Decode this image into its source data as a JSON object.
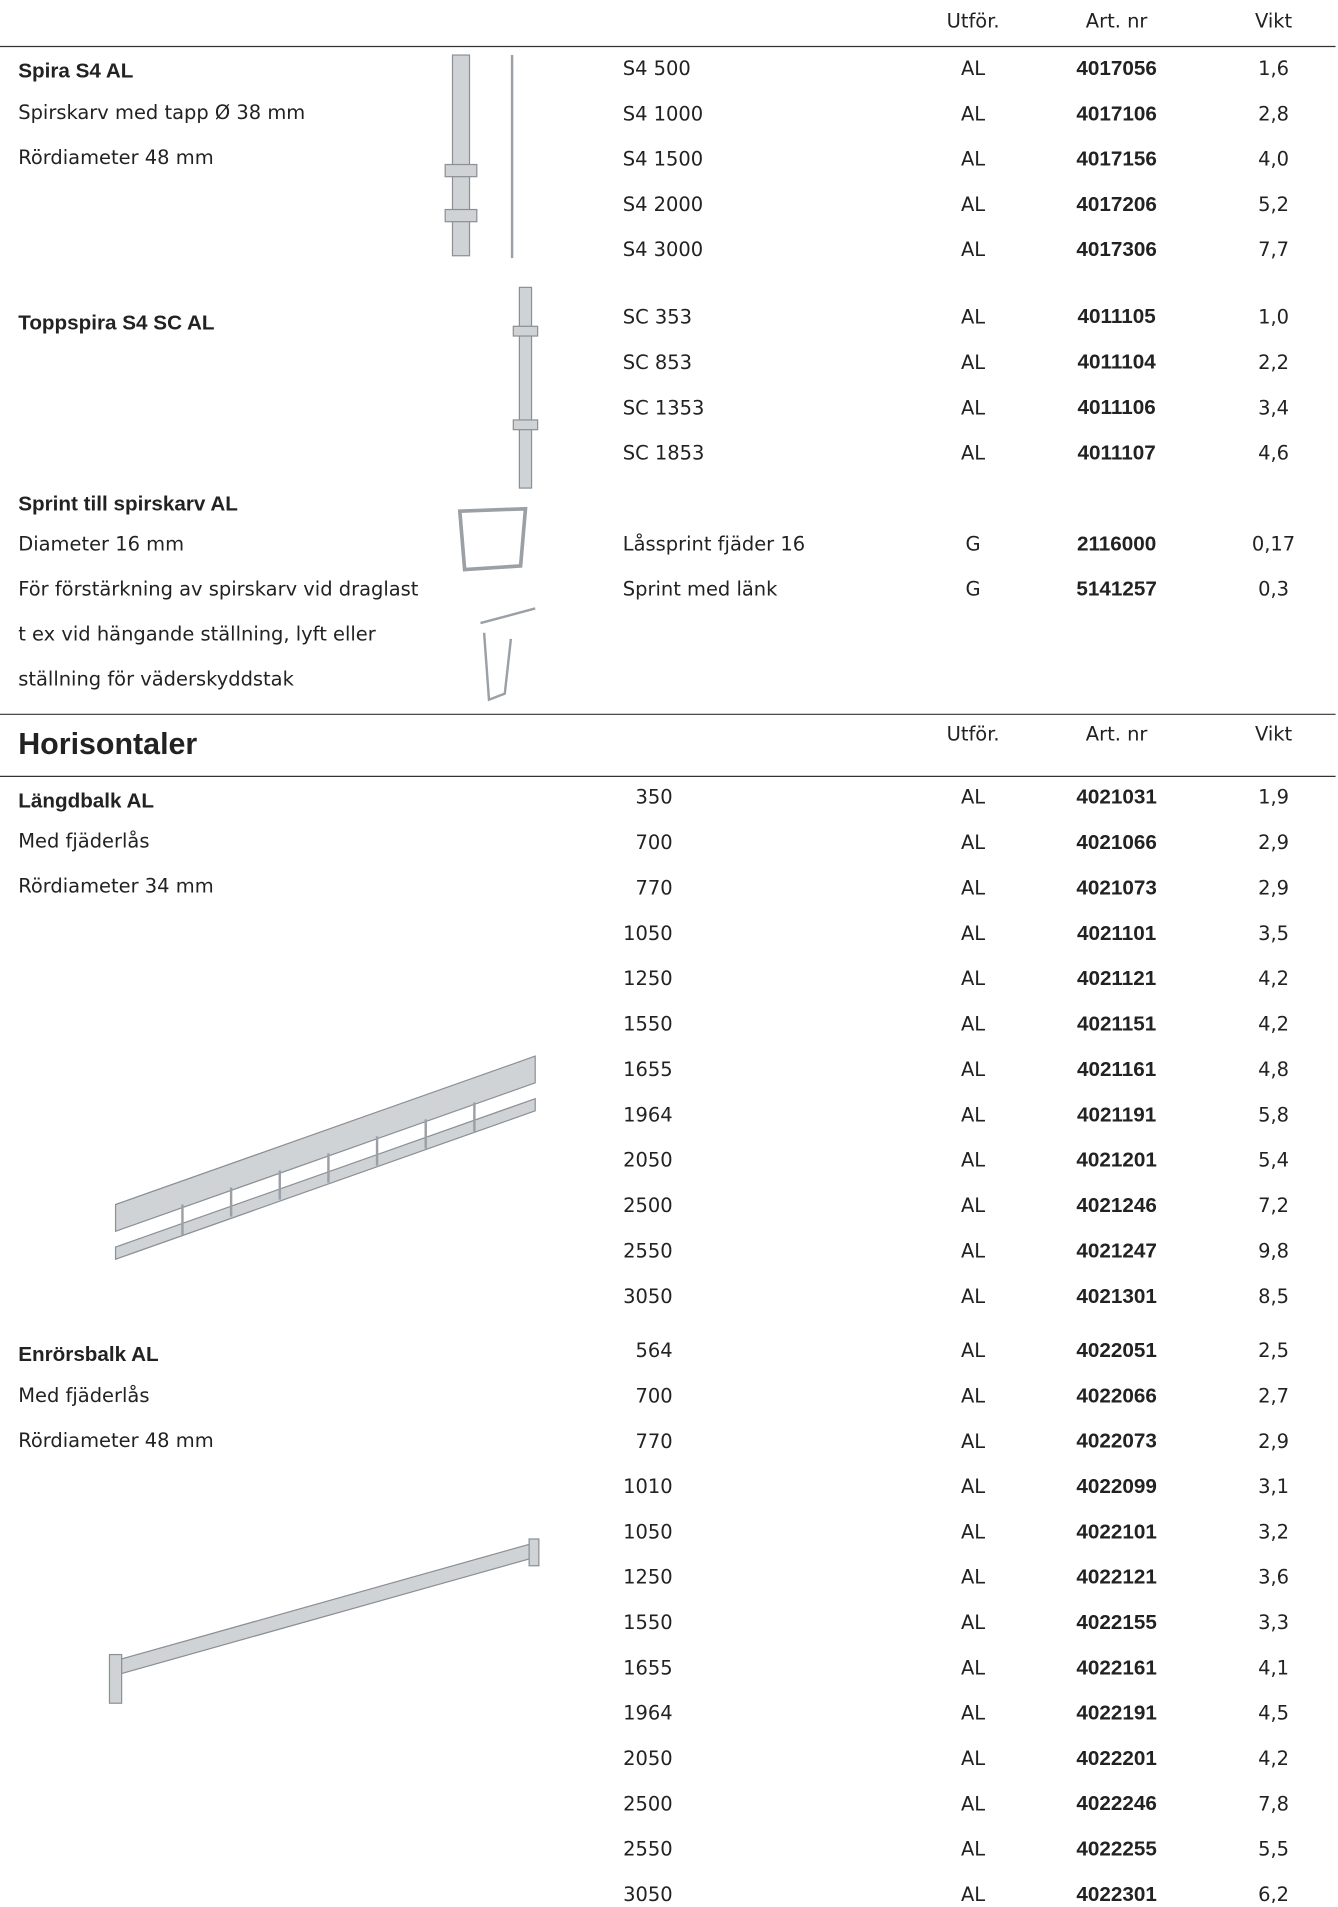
{
  "header": {
    "utfor": "Utför.",
    "art_nr": "Art. nr",
    "vikt": "Vikt"
  },
  "section_title": "Horisontaler",
  "groups": [
    {
      "title": "Spira S4 AL",
      "lines": [
        "Spirskarv med tapp Ø 38 mm",
        "Rördiameter 48 mm"
      ],
      "rows": [
        [
          "S4 500",
          "AL",
          "4017056",
          "1,6"
        ],
        [
          "S4 1000",
          "AL",
          "4017106",
          "2,8"
        ],
        [
          "S4 1500",
          "AL",
          "4017156",
          "4,0"
        ],
        [
          "S4 2000",
          "AL",
          "4017206",
          "5,2"
        ],
        [
          "S4 3000",
          "AL",
          "4017306",
          "7,7"
        ]
      ]
    },
    {
      "title": "Toppspira S4 SC AL",
      "lines": [],
      "rows": [
        [
          "SC  353",
          "AL",
          "4011105",
          "1,0"
        ],
        [
          "SC  853",
          "AL",
          "4011104",
          "2,2"
        ],
        [
          "SC 1353",
          "AL",
          "4011106",
          "3,4"
        ],
        [
          "SC 1853",
          "AL",
          "4011107",
          "4,6"
        ]
      ]
    },
    {
      "title": "Sprint till spirskarv AL",
      "lines": [
        "Diameter 16 mm",
        "För förstärkning av spirskarv vid draglast",
        "t ex vid hängande ställning, lyft eller",
        "ställning för väderskyddstak"
      ],
      "rows": [
        [
          "Låssprint fjäder 16",
          "G",
          "2116000",
          "0,17"
        ],
        [
          "Sprint med länk",
          "G",
          "5141257",
          "0,3"
        ]
      ]
    },
    {
      "title": "Längdbalk AL",
      "lines": [
        "Med fjäderlås",
        "Rördiameter 34 mm"
      ],
      "rows": [
        [
          "350",
          "AL",
          "4021031",
          "1,9"
        ],
        [
          "700",
          "AL",
          "4021066",
          "2,9"
        ],
        [
          "770",
          "AL",
          "4021073",
          "2,9"
        ],
        [
          "1050",
          "AL",
          "4021101",
          "3,5"
        ],
        [
          "1250",
          "AL",
          "4021121",
          "4,2"
        ],
        [
          "1550",
          "AL",
          "4021151",
          "4,2"
        ],
        [
          "1655",
          "AL",
          "4021161",
          "4,8"
        ],
        [
          "1964",
          "AL",
          "4021191",
          "5,8"
        ],
        [
          "2050",
          "AL",
          "4021201",
          "5,4"
        ],
        [
          "2500",
          "AL",
          "4021246",
          "7,2"
        ],
        [
          "2550",
          "AL",
          "4021247",
          "9,8"
        ],
        [
          "3050",
          "AL",
          "4021301",
          "8,5"
        ]
      ]
    },
    {
      "title": "Enrörsbalk AL",
      "lines": [
        "Med fjäderlås",
        "Rördiameter 48 mm"
      ],
      "rows": [
        [
          "564",
          "AL",
          "4022051",
          "2,5"
        ],
        [
          "700",
          "AL",
          "4022066",
          "2,7"
        ],
        [
          "770",
          "AL",
          "4022073",
          "2,9"
        ],
        [
          "1010",
          "AL",
          "4022099",
          "3,1"
        ],
        [
          "1050",
          "AL",
          "4022101",
          "3,2"
        ],
        [
          "1250",
          "AL",
          "4022121",
          "3,6"
        ],
        [
          "1550",
          "AL",
          "4022155",
          "3,3"
        ],
        [
          "1655",
          "AL",
          "4022161",
          "4,1"
        ],
        [
          "1964",
          "AL",
          "4022191",
          "4,5"
        ],
        [
          "2050",
          "AL",
          "4022201",
          "4,2"
        ],
        [
          "2500",
          "AL",
          "4022246",
          "7,8"
        ],
        [
          "2550",
          "AL",
          "4022255",
          "5,5"
        ],
        [
          "3050",
          "AL",
          "4022301",
          "6,2"
        ]
      ]
    }
  ]
}
